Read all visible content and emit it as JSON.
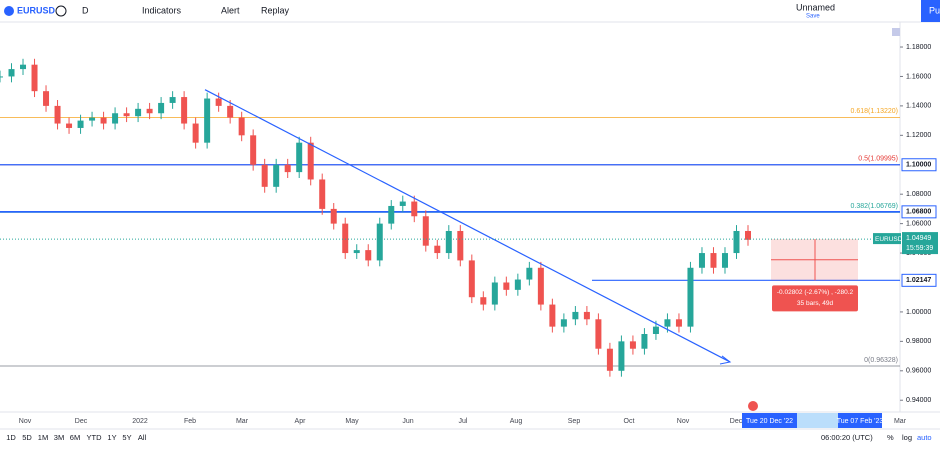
{
  "toolbar": {
    "symbol": "EURUSD",
    "interval": "D",
    "indicators": "Indicators",
    "alert": "Alert",
    "replay": "Replay",
    "layout_name": "Unnamed",
    "layout_save": "Save",
    "publish": "Pu"
  },
  "chart_data": {
    "type": "candlestick",
    "closes": [
      1.16,
      1.165,
      1.168,
      1.15,
      1.14,
      1.128,
      1.125,
      1.13,
      1.132,
      1.128,
      1.135,
      1.133,
      1.138,
      1.135,
      1.142,
      1.146,
      1.128,
      1.115,
      1.145,
      1.14,
      1.132,
      1.12,
      1.1,
      1.085,
      1.1,
      1.095,
      1.115,
      1.09,
      1.07,
      1.06,
      1.04,
      1.042,
      1.035,
      1.06,
      1.072,
      1.075,
      1.065,
      1.045,
      1.04,
      1.055,
      1.035,
      1.01,
      1.005,
      1.02,
      1.015,
      1.022,
      1.03,
      1.005,
      0.99,
      0.995,
      1.0,
      0.995,
      0.975,
      0.96,
      0.98,
      0.975,
      0.985,
      0.99,
      0.995,
      0.99,
      1.03,
      1.04,
      1.03,
      1.04,
      1.055,
      1.049
    ],
    "ylim": [
      0.932,
      1.197
    ],
    "yticks": [
      {
        "value": 1.18,
        "label": "1.18000"
      },
      {
        "value": 1.16,
        "label": "1.16000"
      },
      {
        "value": 1.14,
        "label": "1.14000"
      },
      {
        "value": 1.12,
        "label": "1.12000"
      },
      {
        "value": 1.08,
        "label": "1.08000"
      },
      {
        "value": 1.06,
        "label": "1.06000"
      },
      {
        "value": 1.04,
        "label": "1.04000"
      },
      {
        "value": 1.0,
        "label": "1.00000"
      },
      {
        "value": 0.98,
        "label": "0.98000"
      },
      {
        "value": 0.96,
        "label": "0.96000"
      },
      {
        "value": 0.94,
        "label": "0.94000"
      }
    ],
    "months": [
      "Nov",
      "Dec",
      "2022",
      "Feb",
      "Mar",
      "Apr",
      "May",
      "Jun",
      "Jul",
      "Aug",
      "Sep",
      "Oct",
      "Nov",
      "Dec",
      "3",
      "Mar"
    ],
    "fib_levels": [
      {
        "value": 1.1322,
        "label": "0.618(1.13220)",
        "color": "#f5a623"
      },
      {
        "value": 1.09995,
        "label": "0.5(1.09995)",
        "color": "#e53935"
      },
      {
        "value": 1.06769,
        "label": "0.382(1.06769)",
        "color": "#26a69a"
      },
      {
        "value": 0.96328,
        "label": "0(0.96328)",
        "color": "#787b86"
      }
    ],
    "horizontal_lines": [
      {
        "value": 1.1,
        "label": "1.10000"
      },
      {
        "value": 1.068,
        "label": "1.06800"
      },
      {
        "value": 1.02147,
        "label": "1.02147"
      }
    ],
    "trendline": [
      1.151,
      0.966
    ],
    "last_price": {
      "value": 1.04949,
      "label": "1.04949",
      "countdown": "15:59:39",
      "symbol": "EURUSD"
    },
    "measure": {
      "text": "-0.02802 (-2.67%) , -280.2",
      "bars": "35 bars, 49d",
      "from": 1.04949,
      "to": 1.02147
    },
    "time_range": [
      "Tue 20 Dec '22",
      "Tue 07 Feb '23"
    ]
  },
  "bottom_bar": {
    "ranges": [
      "1D",
      "5D",
      "1M",
      "3M",
      "6M",
      "YTD",
      "1Y",
      "5Y",
      "All"
    ],
    "clock": "06:00:20 (UTC)",
    "percent": "%",
    "log": "log",
    "auto": "auto"
  }
}
